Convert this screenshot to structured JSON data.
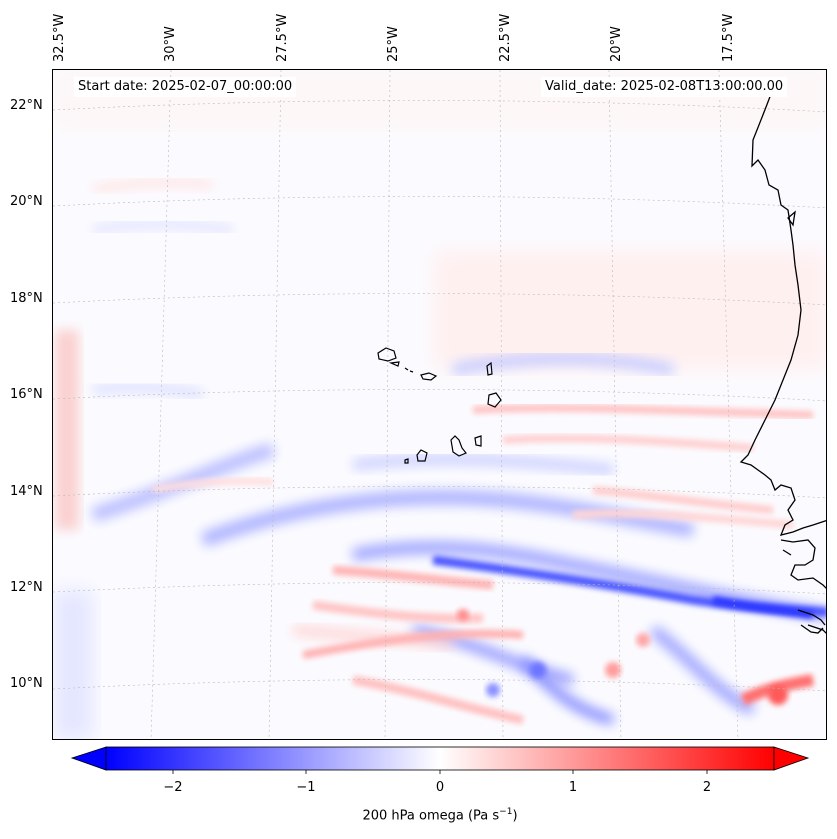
{
  "header": {
    "start_date": "Start date: 2025-02-07_00:00:00",
    "valid_date": "Valid_date: 2025-02-08T13:00:00.00"
  },
  "axes": {
    "lon_labels": [
      "32.5°W",
      "30°W",
      "27.5°W",
      "25°W",
      "22.5°W",
      "20°W",
      "17.5°W"
    ],
    "lat_labels": [
      "22°N",
      "20°N",
      "18°N",
      "16°N",
      "14°N",
      "12°N",
      "10°N"
    ]
  },
  "colorbar": {
    "ticks": [
      "−2",
      "−1",
      "0",
      "1",
      "2"
    ],
    "label_main": "200 hPa omega (Pa s",
    "label_sup": "−1",
    "label_end": ")",
    "vmin": -2.6,
    "vmax": 2.6,
    "extend": "both",
    "colors": {
      "negative": "#0000ff",
      "zero": "#ffffff",
      "positive": "#ff0000"
    }
  },
  "map": {
    "projection": "lambert-like curved graticule",
    "coastline_color": "#000000",
    "gridline_style": "dotted"
  }
}
